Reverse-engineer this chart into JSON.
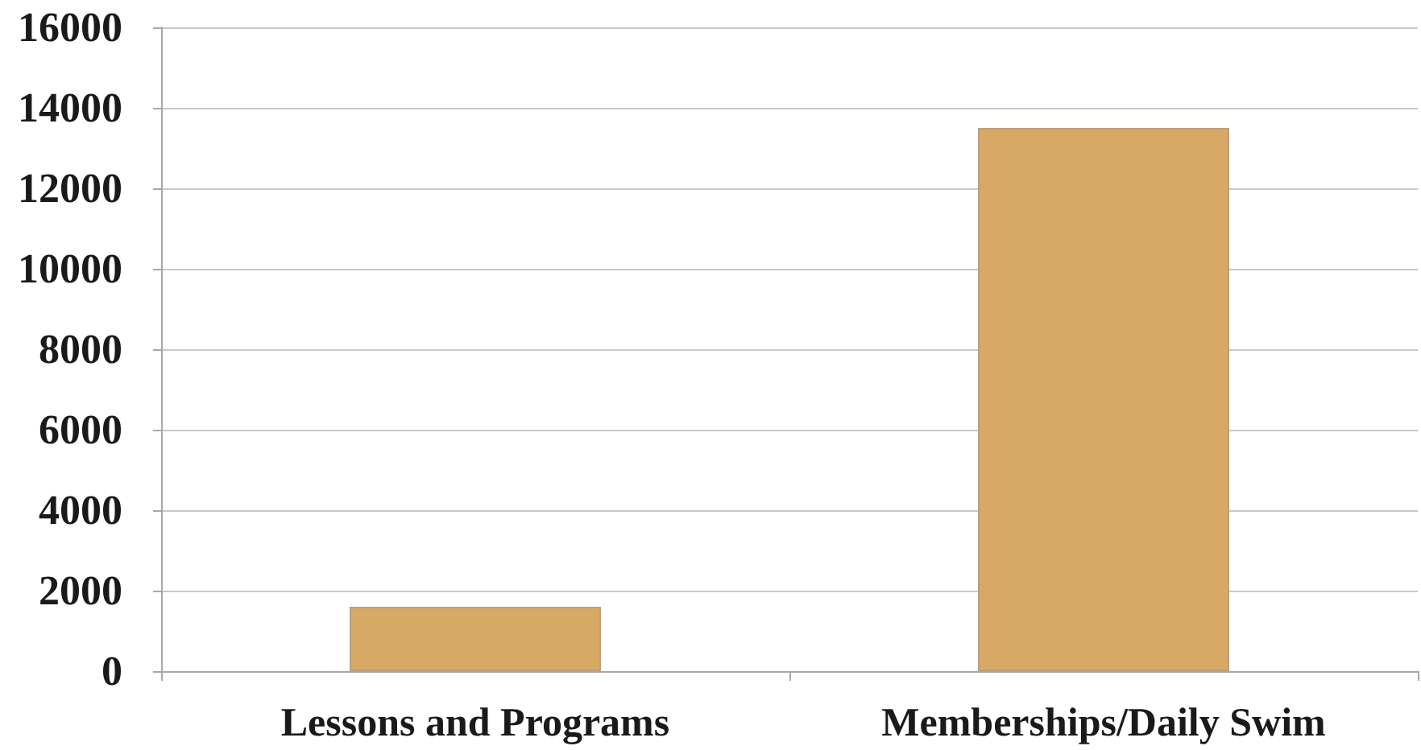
{
  "chart_data": {
    "type": "bar",
    "categories": [
      "Lessons and Programs",
      "Memberships/Daily Swim"
    ],
    "values": [
      1600,
      13500
    ],
    "color": "#d8a964",
    "ylim": [
      0,
      16000
    ],
    "yticks": [
      0,
      2000,
      4000,
      6000,
      8000,
      10000,
      12000,
      14000,
      16000
    ],
    "grid": "y"
  }
}
